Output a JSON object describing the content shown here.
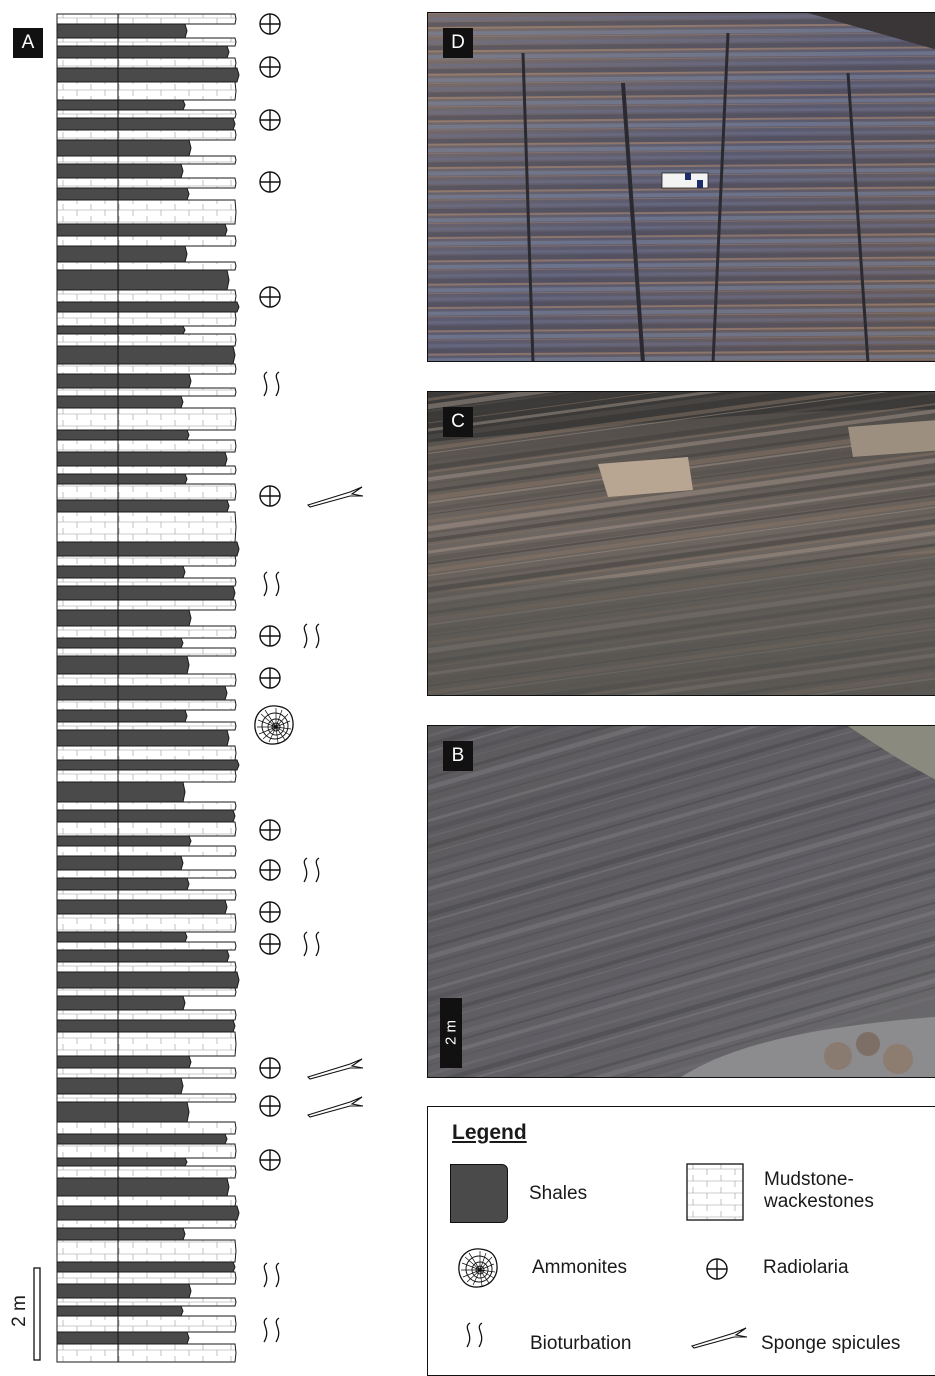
{
  "panels": {
    "a": "A",
    "b": "B",
    "c": "C",
    "d": "D"
  },
  "column": {
    "scale_label": "2 m"
  },
  "photo_b": {
    "scale_label": "2 m"
  },
  "legend": {
    "title": "Legend",
    "items": {
      "shales": "Shales",
      "mudstone": "Mudstone-\nwackestones",
      "ammonites": "Ammonites",
      "radiolaria": "Radiolaria",
      "bioturbation": "Bioturbation",
      "spicules": "Sponge spicules"
    }
  },
  "colors": {
    "shale": "#4a4a4a",
    "limestone": "#ffffff",
    "line": "#1a1a1a",
    "photo_d": "#5a5866",
    "photo_c": "#6b6660",
    "photo_b": "#5e5d62"
  },
  "fossil_markers": [
    {
      "symbols": [
        "radiolaria-icon"
      ]
    },
    {
      "symbols": [
        "radiolaria-icon"
      ]
    },
    {
      "symbols": [
        "radiolaria-icon"
      ]
    },
    {
      "symbols": [
        "radiolaria-icon"
      ]
    },
    {
      "symbols": [
        "radiolaria-icon"
      ]
    },
    {
      "symbols": [
        "bioturbation-icon"
      ]
    },
    {
      "symbols": [
        "radiolaria-icon",
        "sponge-spicules-icon"
      ]
    },
    {
      "symbols": [
        "bioturbation-icon"
      ]
    },
    {
      "symbols": [
        "radiolaria-icon",
        "bioturbation-icon"
      ]
    },
    {
      "symbols": [
        "radiolaria-icon"
      ]
    },
    {
      "symbols": [
        "ammonites-icon"
      ]
    },
    {
      "symbols": [
        "radiolaria-icon"
      ]
    },
    {
      "symbols": [
        "radiolaria-icon",
        "bioturbation-icon"
      ]
    },
    {
      "symbols": [
        "radiolaria-icon"
      ]
    },
    {
      "symbols": [
        "radiolaria-icon",
        "bioturbation-icon"
      ]
    },
    {
      "symbols": [
        "radiolaria-icon",
        "sponge-spicules-icon"
      ]
    },
    {
      "symbols": [
        "radiolaria-icon",
        "sponge-spicules-icon"
      ]
    },
    {
      "symbols": [
        "radiolaria-icon"
      ]
    },
    {
      "symbols": [
        "bioturbation-icon"
      ]
    },
    {
      "symbols": [
        "bioturbation-icon"
      ]
    }
  ]
}
